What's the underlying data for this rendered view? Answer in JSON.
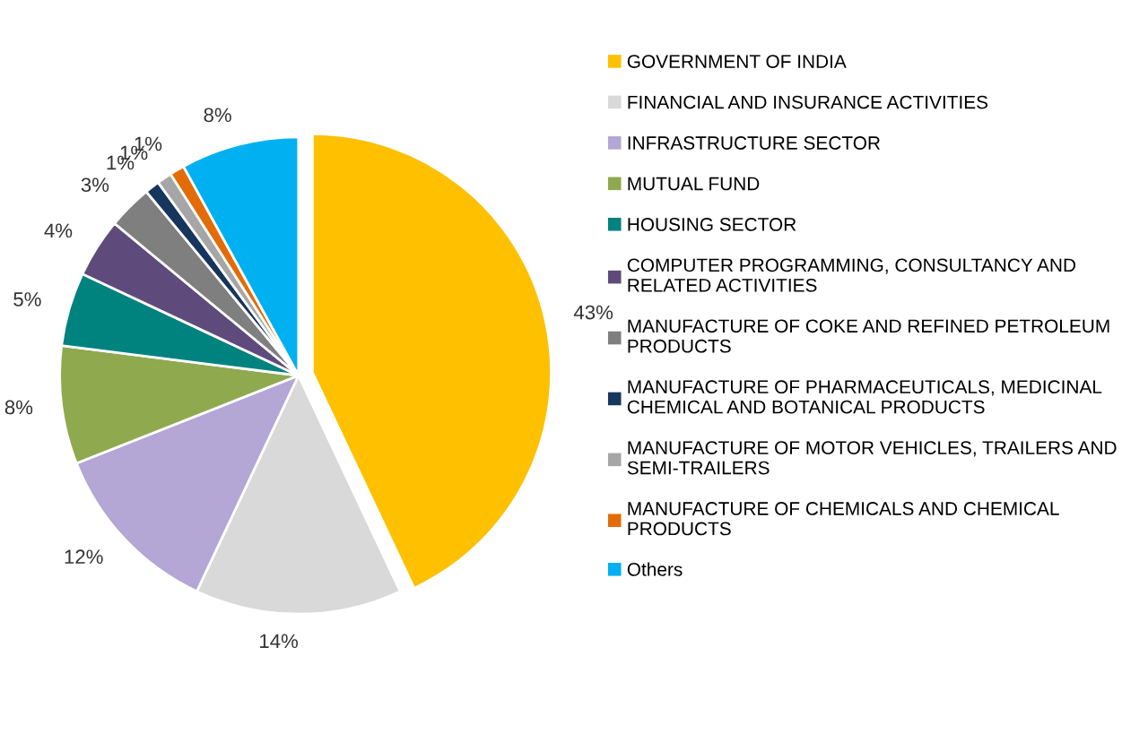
{
  "chart_data": {
    "type": "pie",
    "categories": [
      "GOVERNMENT OF INDIA",
      "FINANCIAL AND INSURANCE ACTIVITIES",
      "INFRASTRUCTURE SECTOR",
      "MUTUAL FUND",
      "HOUSING SECTOR",
      "COMPUTER PROGRAMMING, CONSULTANCY AND\nRELATED ACTIVITIES",
      "MANUFACTURE OF COKE AND REFINED PETROLEUM\nPRODUCTS",
      "MANUFACTURE OF PHARMACEUTICALS, MEDICINAL\nCHEMICAL AND BOTANICAL PRODUCTS",
      "MANUFACTURE OF MOTOR VEHICLES, TRAILERS AND\nSEMI-TRAILERS",
      "MANUFACTURE OF CHEMICALS AND CHEMICAL\nPRODUCTS",
      "Others"
    ],
    "values": [
      43,
      14,
      12,
      8,
      5,
      4,
      3,
      1,
      1,
      1,
      8
    ],
    "colors": [
      "#ffc000",
      "#d9d9d9",
      "#b4a7d6",
      "#8faa4e",
      "#00827f",
      "#5f4b7b",
      "#7f7f7f",
      "#17365d",
      "#a6a6a6",
      "#e36c09",
      "#00b0f0"
    ],
    "value_labels": [
      "43%",
      "14%",
      "12%",
      "8%",
      "5%",
      "4%",
      "3%",
      "1%",
      "1%",
      "1%",
      "8%"
    ],
    "legend": "right"
  }
}
